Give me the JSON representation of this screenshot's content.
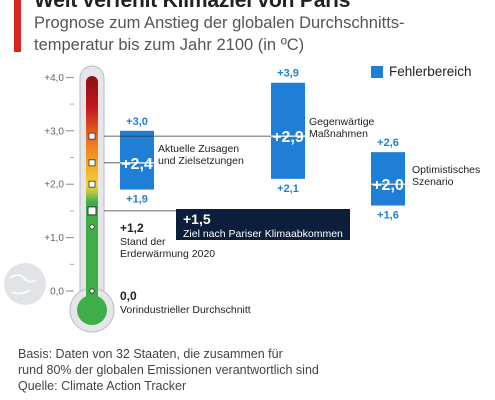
{
  "title": "Weit verfehlt Klimaziel von Paris",
  "subtitle": "Prognose zum Anstieg der globalen Durchschnitts-temperatur bis zum Jahr 2100 (in ºC)",
  "legend_label": "Fehlerbereich",
  "footer": {
    "line1": "Basis: Daten von 32 Staaten, die zusammen für",
    "line2": "rund 80% der globalen Emissionen verantwortlich sind",
    "line3": "Quelle: Climate Action Tracker"
  },
  "colors": {
    "bar": "#1f7fd6",
    "target_box": "#0d1e3c",
    "bar_label": "#1f7fd6"
  },
  "chart_data": {
    "type": "bar",
    "ylabel": "",
    "ylim": [
      0,
      4
    ],
    "yticks": [
      "0,0",
      "+1,0",
      "+2,0",
      "+3,0",
      "+4,0"
    ],
    "tick_values": [
      0,
      1,
      2,
      3,
      4
    ],
    "series": [
      {
        "label": "Aktuelle Zusagen und Zielsetzungen",
        "label_lines": [
          "Aktuelle Zusagen",
          "und Zielsetzungen"
        ],
        "value": 2.4,
        "low": 1.9,
        "high": 3.0,
        "value_text": "+2,4",
        "low_text": "+1,9",
        "high_text": "+3,0"
      },
      {
        "label": "Gegenwärtige Maßnahmen",
        "label_lines": [
          "Gegenwärtige",
          "Maßnahmen"
        ],
        "value": 2.9,
        "low": 2.1,
        "high": 3.9,
        "value_text": "+2,9",
        "low_text": "+2,1",
        "high_text": "+3,9"
      },
      {
        "label": "Optimistisches Szenario",
        "label_lines": [
          "Optimistisches",
          "Szenario"
        ],
        "value": 2.0,
        "low": 1.6,
        "high": 2.6,
        "value_text": "+2,0",
        "low_text": "+1,6",
        "high_text": "+2,6"
      }
    ],
    "annotations": [
      {
        "value": 1.5,
        "value_text": "+1,5",
        "text": "Ziel nach Pariser Klimaabkommen"
      },
      {
        "value": 1.2,
        "value_text": "+1,2",
        "lines": [
          "Stand der",
          "Erderwärmung 2020"
        ]
      },
      {
        "value": 0.0,
        "value_text": "0,0",
        "text": "Vorindustrieller Durchschnitt"
      }
    ]
  }
}
